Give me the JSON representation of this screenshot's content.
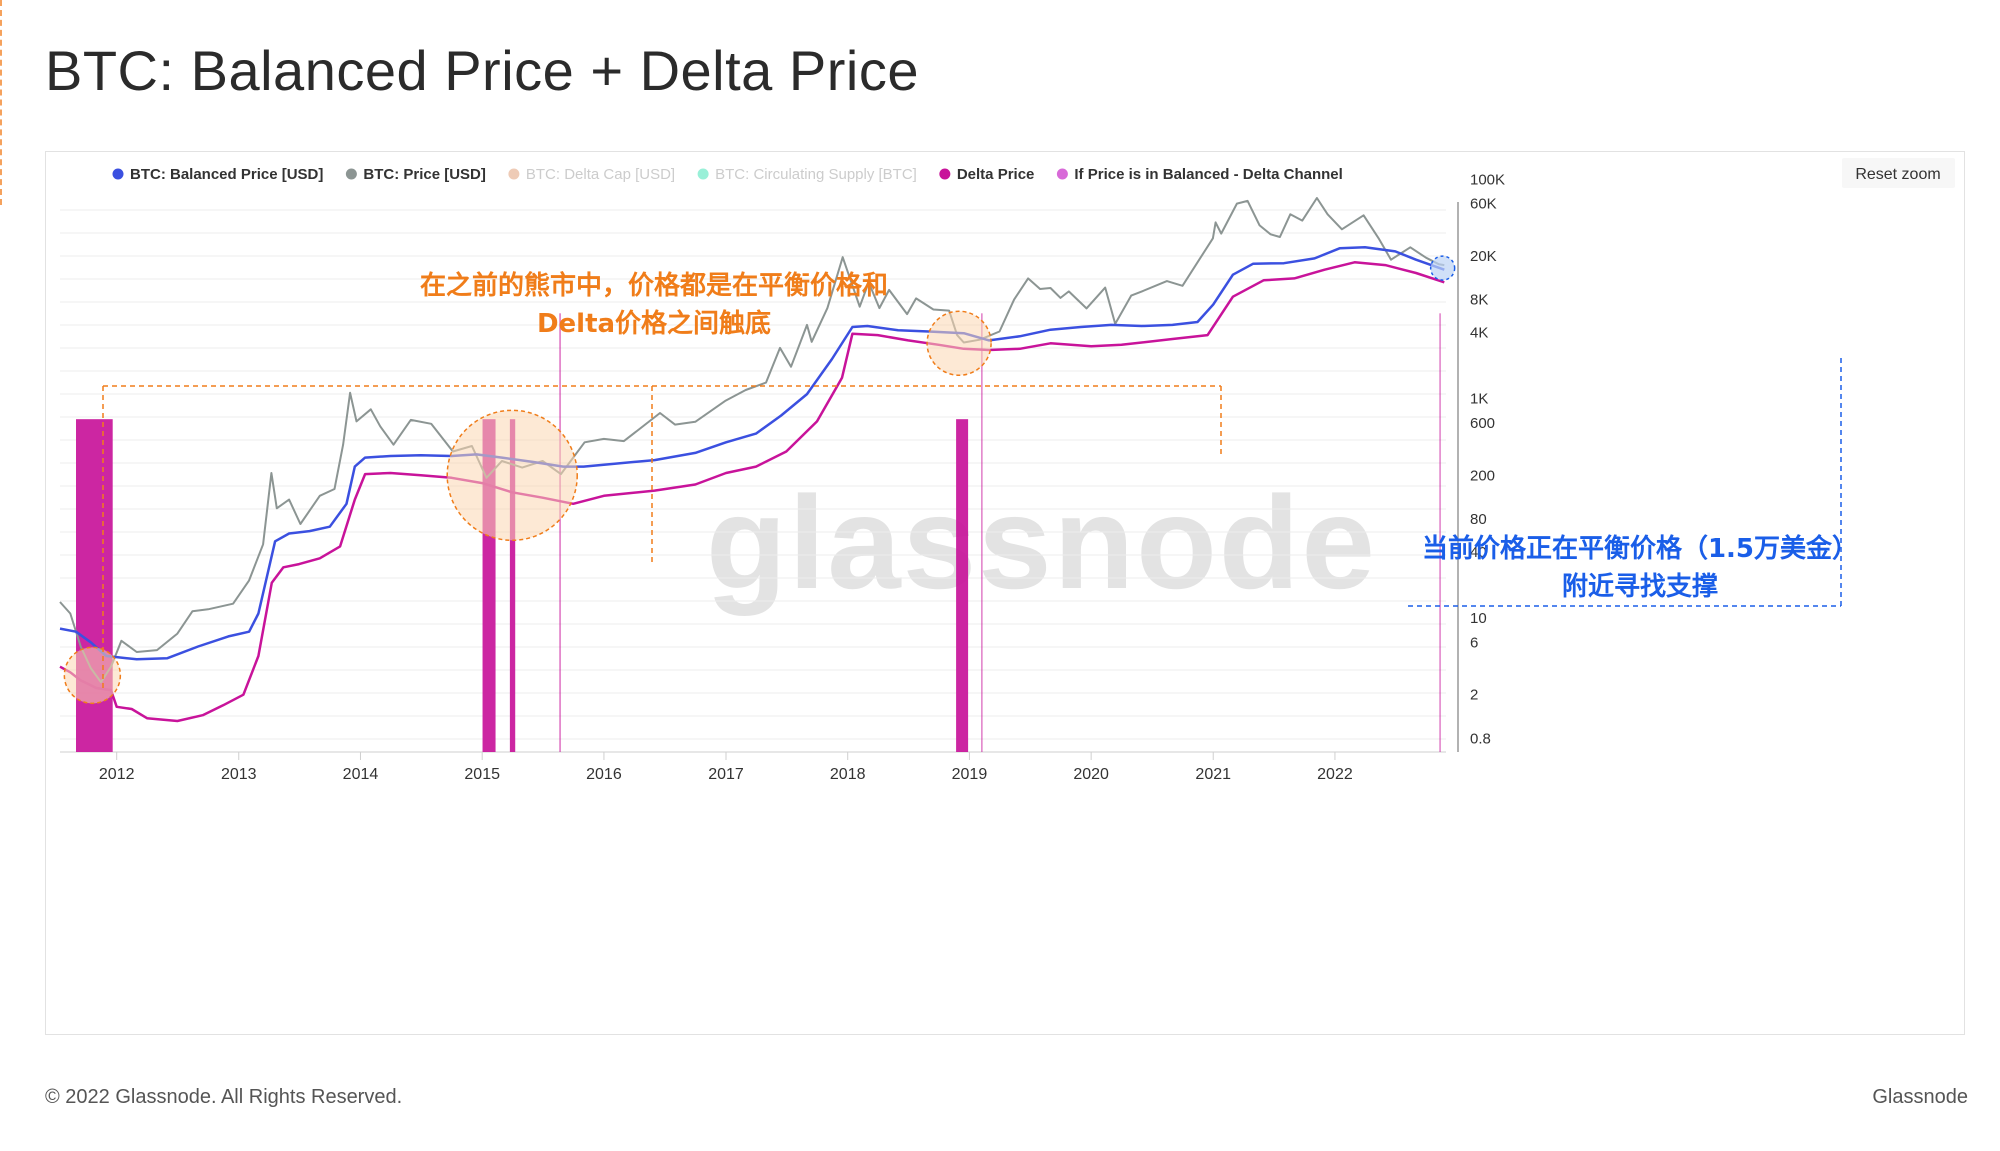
{
  "page": {
    "title": "BTC: Balanced Price + Delta Price",
    "footer_left": "© 2022 Glassnode. All Rights Reserved.",
    "footer_right": "Glassnode",
    "watermark": "glassnode",
    "reset_zoom_label": "Reset zoom"
  },
  "annotations": {
    "orange_line1": "在之前的熊市中，价格都是在平衡价格和",
    "orange_line2": "Delta价格之间触底",
    "blue_line1": "当前价格正在平衡价格（1.5万美金）",
    "blue_line2": "附近寻找支撑",
    "orange_color": "#f07d1a",
    "blue_color": "#1a5ee8"
  },
  "chart_data": {
    "type": "line",
    "y_scale": "log",
    "ylim": [
      0.6,
      150000
    ],
    "xlim": [
      "2011-07-15",
      "2022-11-30"
    ],
    "x_ticks": [
      "2012",
      "2013",
      "2014",
      "2015",
      "2016",
      "2017",
      "2018",
      "2019",
      "2020",
      "2021",
      "2022"
    ],
    "y_ticks": [
      {
        "value": 100000,
        "label": "100K"
      },
      {
        "value": 60000,
        "label": "60K"
      },
      {
        "value": 20000,
        "label": "20K"
      },
      {
        "value": 8000,
        "label": "8K"
      },
      {
        "value": 4000,
        "label": "4K"
      },
      {
        "value": 1000,
        "label": "1K"
      },
      {
        "value": 600,
        "label": "600"
      },
      {
        "value": 200,
        "label": "200"
      },
      {
        "value": 80,
        "label": "80"
      },
      {
        "value": 40,
        "label": "40"
      },
      {
        "value": 10,
        "label": "10"
      },
      {
        "value": 6,
        "label": "6"
      },
      {
        "value": 2,
        "label": "2"
      },
      {
        "value": 0.8,
        "label": "0.8"
      }
    ],
    "legend": [
      {
        "name": "BTC: Balanced Price [USD]",
        "color": "#3b50e0",
        "enabled": true
      },
      {
        "name": "BTC: Price [USD]",
        "color": "#8c9593",
        "enabled": true
      },
      {
        "name": "BTC: Delta Cap [USD]",
        "color": "#e0a07a",
        "enabled": false
      },
      {
        "name": "BTC: Circulating Supply [BTC]",
        "color": "#45e3b8",
        "enabled": false
      },
      {
        "name": "Delta Price",
        "color": "#c8139a",
        "enabled": true
      },
      {
        "name": "If Price is in Balanced - Delta Channel",
        "color": "#d86ad8",
        "enabled": true
      }
    ],
    "series": [
      {
        "name": "BTC: Price [USD]",
        "color": "#8c9593",
        "points": [
          [
            "2011-07-15",
            14
          ],
          [
            "2011-08-15",
            11
          ],
          [
            "2011-09-15",
            5.5
          ],
          [
            "2011-10-15",
            3.5
          ],
          [
            "2011-11-15",
            2.6
          ],
          [
            "2011-12-15",
            3.6
          ],
          [
            "2012-01-15",
            6.2
          ],
          [
            "2012-03-01",
            4.9
          ],
          [
            "2012-05-01",
            5.1
          ],
          [
            "2012-07-01",
            7.2
          ],
          [
            "2012-08-15",
            11.5
          ],
          [
            "2012-10-01",
            12
          ],
          [
            "2012-12-15",
            13.5
          ],
          [
            "2013-02-01",
            22
          ],
          [
            "2013-03-15",
            47
          ],
          [
            "2013-04-09",
            210
          ],
          [
            "2013-04-25",
            100
          ],
          [
            "2013-06-01",
            120
          ],
          [
            "2013-07-05",
            72
          ],
          [
            "2013-09-01",
            130
          ],
          [
            "2013-10-15",
            150
          ],
          [
            "2013-11-10",
            380
          ],
          [
            "2013-12-01",
            1130
          ],
          [
            "2013-12-20",
            620
          ],
          [
            "2014-02-01",
            800
          ],
          [
            "2014-03-01",
            560
          ],
          [
            "2014-04-10",
            380
          ],
          [
            "2014-06-01",
            640
          ],
          [
            "2014-08-01",
            590
          ],
          [
            "2014-10-05",
            330
          ],
          [
            "2014-12-01",
            370
          ],
          [
            "2015-01-14",
            190
          ],
          [
            "2015-03-01",
            270
          ],
          [
            "2015-05-01",
            235
          ],
          [
            "2015-07-01",
            270
          ],
          [
            "2015-08-25",
            205
          ],
          [
            "2015-11-04",
            400
          ],
          [
            "2016-01-01",
            430
          ],
          [
            "2016-03-01",
            410
          ],
          [
            "2016-06-17",
            740
          ],
          [
            "2016-08-01",
            580
          ],
          [
            "2016-10-01",
            615
          ],
          [
            "2016-12-31",
            960
          ],
          [
            "2017-03-01",
            1200
          ],
          [
            "2017-05-01",
            1400
          ],
          [
            "2017-06-12",
            2900
          ],
          [
            "2017-07-15",
            1950
          ],
          [
            "2017-09-01",
            4700
          ],
          [
            "2017-09-15",
            3300
          ],
          [
            "2017-11-01",
            6700
          ],
          [
            "2017-12-17",
            19500
          ],
          [
            "2018-02-06",
            6900
          ],
          [
            "2018-03-05",
            11500
          ],
          [
            "2018-04-06",
            6700
          ],
          [
            "2018-05-05",
            9800
          ],
          [
            "2018-06-28",
            5900
          ],
          [
            "2018-07-25",
            8200
          ],
          [
            "2018-09-15",
            6500
          ],
          [
            "2018-11-01",
            6350
          ],
          [
            "2018-11-25",
            3800
          ],
          [
            "2018-12-15",
            3250
          ],
          [
            "2019-02-01",
            3450
          ],
          [
            "2019-04-01",
            4100
          ],
          [
            "2019-05-15",
            8000
          ],
          [
            "2019-06-26",
            12500
          ],
          [
            "2019-08-01",
            10000
          ],
          [
            "2019-09-01",
            10200
          ],
          [
            "2019-10-01",
            8300
          ],
          [
            "2019-10-26",
            9500
          ],
          [
            "2019-12-18",
            6650
          ],
          [
            "2020-02-12",
            10300
          ],
          [
            "2020-03-13",
            4800
          ],
          [
            "2020-04-30",
            8700
          ],
          [
            "2020-06-01",
            9500
          ],
          [
            "2020-08-15",
            11800
          ],
          [
            "2020-10-01",
            10700
          ],
          [
            "2020-11-20",
            18500
          ],
          [
            "2020-12-31",
            29000
          ],
          [
            "2021-01-08",
            40500
          ],
          [
            "2021-01-25",
            32000
          ],
          [
            "2021-03-13",
            60000
          ],
          [
            "2021-04-14",
            63500
          ],
          [
            "2021-05-20",
            38000
          ],
          [
            "2021-06-22",
            31500
          ],
          [
            "2021-07-20",
            29800
          ],
          [
            "2021-08-20",
            48000
          ],
          [
            "2021-09-25",
            42000
          ],
          [
            "2021-11-08",
            67500
          ],
          [
            "2021-12-10",
            48000
          ],
          [
            "2022-01-22",
            35000
          ],
          [
            "2022-03-28",
            47000
          ],
          [
            "2022-05-12",
            29000
          ],
          [
            "2022-06-18",
            18500
          ],
          [
            "2022-08-15",
            24000
          ],
          [
            "2022-10-01",
            19300
          ],
          [
            "2022-11-09",
            16800
          ],
          [
            "2022-11-25",
            16500
          ]
        ]
      },
      {
        "name": "BTC: Balanced Price [USD]",
        "color": "#3b50e0",
        "points": [
          [
            "2011-07-15",
            8
          ],
          [
            "2011-09-01",
            7.5
          ],
          [
            "2011-10-15",
            6
          ],
          [
            "2011-12-01",
            4.5
          ],
          [
            "2012-03-01",
            4.2
          ],
          [
            "2012-06-01",
            4.3
          ],
          [
            "2012-09-01",
            5.5
          ],
          [
            "2012-12-01",
            6.8
          ],
          [
            "2013-02-01",
            7.5
          ],
          [
            "2013-03-01",
            11
          ],
          [
            "2013-04-20",
            50
          ],
          [
            "2013-06-01",
            59
          ],
          [
            "2013-08-01",
            62
          ],
          [
            "2013-10-01",
            68
          ],
          [
            "2013-11-20",
            110
          ],
          [
            "2013-12-15",
            240
          ],
          [
            "2014-01-15",
            290
          ],
          [
            "2014-04-01",
            300
          ],
          [
            "2014-07-01",
            305
          ],
          [
            "2014-10-01",
            300
          ],
          [
            "2014-12-15",
            310
          ],
          [
            "2015-03-01",
            290
          ],
          [
            "2015-06-01",
            265
          ],
          [
            "2015-09-01",
            240
          ],
          [
            "2015-11-01",
            240
          ],
          [
            "2016-01-01",
            250
          ],
          [
            "2016-06-01",
            275
          ],
          [
            "2016-10-01",
            320
          ],
          [
            "2017-01-01",
            400
          ],
          [
            "2017-04-01",
            480
          ],
          [
            "2017-06-15",
            700
          ],
          [
            "2017-09-01",
            1100
          ],
          [
            "2017-11-15",
            2300
          ],
          [
            "2018-01-15",
            4500
          ],
          [
            "2018-03-01",
            4600
          ],
          [
            "2018-06-01",
            4200
          ],
          [
            "2018-09-01",
            4100
          ],
          [
            "2018-12-15",
            3950
          ],
          [
            "2019-03-01",
            3400
          ],
          [
            "2019-06-01",
            3700
          ],
          [
            "2019-09-01",
            4250
          ],
          [
            "2019-12-01",
            4500
          ],
          [
            "2020-03-01",
            4700
          ],
          [
            "2020-06-01",
            4600
          ],
          [
            "2020-09-01",
            4700
          ],
          [
            "2020-11-15",
            5000
          ],
          [
            "2021-01-01",
            7200
          ],
          [
            "2021-03-01",
            13500
          ],
          [
            "2021-05-01",
            17000
          ],
          [
            "2021-08-01",
            17200
          ],
          [
            "2021-11-01",
            19000
          ],
          [
            "2022-01-15",
            23500
          ],
          [
            "2022-04-01",
            24000
          ],
          [
            "2022-07-01",
            22000
          ],
          [
            "2022-09-01",
            18500
          ],
          [
            "2022-11-25",
            15000
          ]
        ]
      },
      {
        "name": "Delta Price",
        "color": "#c8139a",
        "points": [
          [
            "2011-07-15",
            3.6
          ],
          [
            "2011-08-15",
            3.2
          ],
          [
            "2011-09-15",
            2.7
          ],
          [
            "2011-11-01",
            2.3
          ],
          [
            "2011-12-15",
            2.2
          ],
          [
            "2012-01-01",
            1.55
          ],
          [
            "2012-02-15",
            1.48
          ],
          [
            "2012-04-01",
            1.22
          ],
          [
            "2012-07-01",
            1.15
          ],
          [
            "2012-09-15",
            1.3
          ],
          [
            "2012-11-15",
            1.6
          ],
          [
            "2013-01-15",
            2
          ],
          [
            "2013-03-01",
            4.5
          ],
          [
            "2013-04-10",
            21
          ],
          [
            "2013-05-15",
            29
          ],
          [
            "2013-07-01",
            31
          ],
          [
            "2013-09-01",
            35
          ],
          [
            "2013-11-01",
            45
          ],
          [
            "2013-12-15",
            120
          ],
          [
            "2014-01-15",
            205
          ],
          [
            "2014-04-01",
            210
          ],
          [
            "2014-07-01",
            200
          ],
          [
            "2014-10-01",
            190
          ],
          [
            "2015-01-01",
            170
          ],
          [
            "2015-04-01",
            140
          ],
          [
            "2015-07-01",
            125
          ],
          [
            "2015-10-01",
            110
          ],
          [
            "2016-01-01",
            130
          ],
          [
            "2016-06-01",
            145
          ],
          [
            "2016-10-01",
            165
          ],
          [
            "2017-01-01",
            210
          ],
          [
            "2017-04-01",
            240
          ],
          [
            "2017-07-01",
            330
          ],
          [
            "2017-10-01",
            620
          ],
          [
            "2017-12-15",
            1550
          ],
          [
            "2018-01-15",
            3900
          ],
          [
            "2018-04-01",
            3800
          ],
          [
            "2018-07-01",
            3400
          ],
          [
            "2018-10-01",
            3100
          ],
          [
            "2018-12-15",
            2850
          ],
          [
            "2019-03-01",
            2780
          ],
          [
            "2019-06-01",
            2850
          ],
          [
            "2019-09-01",
            3200
          ],
          [
            "2020-01-01",
            3000
          ],
          [
            "2020-04-01",
            3100
          ],
          [
            "2020-09-01",
            3500
          ],
          [
            "2020-12-15",
            3800
          ],
          [
            "2021-03-01",
            8500
          ],
          [
            "2021-06-01",
            12000
          ],
          [
            "2021-09-01",
            12500
          ],
          [
            "2021-12-01",
            15000
          ],
          [
            "2022-03-01",
            17500
          ],
          [
            "2022-06-01",
            16500
          ],
          [
            "2022-09-01",
            14000
          ],
          [
            "2022-11-25",
            11500
          ]
        ]
      }
    ],
    "channel_signal": {
      "name": "If Price is in Balanced - Delta Channel",
      "color": "#c8139a",
      "periods": [
        {
          "start": "2011-09-01",
          "end": "2011-12-20",
          "strength": "strong"
        },
        {
          "start": "2015-01-02",
          "end": "2015-02-10",
          "strength": "strong"
        },
        {
          "start": "2015-03-25",
          "end": "2015-04-10",
          "strength": "strong"
        },
        {
          "start": "2015-08-20",
          "end": "2015-08-25",
          "strength": "weak"
        },
        {
          "start": "2018-11-22",
          "end": "2018-12-28",
          "strength": "strong"
        },
        {
          "start": "2019-02-05",
          "end": "2019-02-09",
          "strength": "weak"
        },
        {
          "start": "2022-11-10",
          "end": "2022-11-13",
          "strength": "weak"
        }
      ]
    }
  }
}
